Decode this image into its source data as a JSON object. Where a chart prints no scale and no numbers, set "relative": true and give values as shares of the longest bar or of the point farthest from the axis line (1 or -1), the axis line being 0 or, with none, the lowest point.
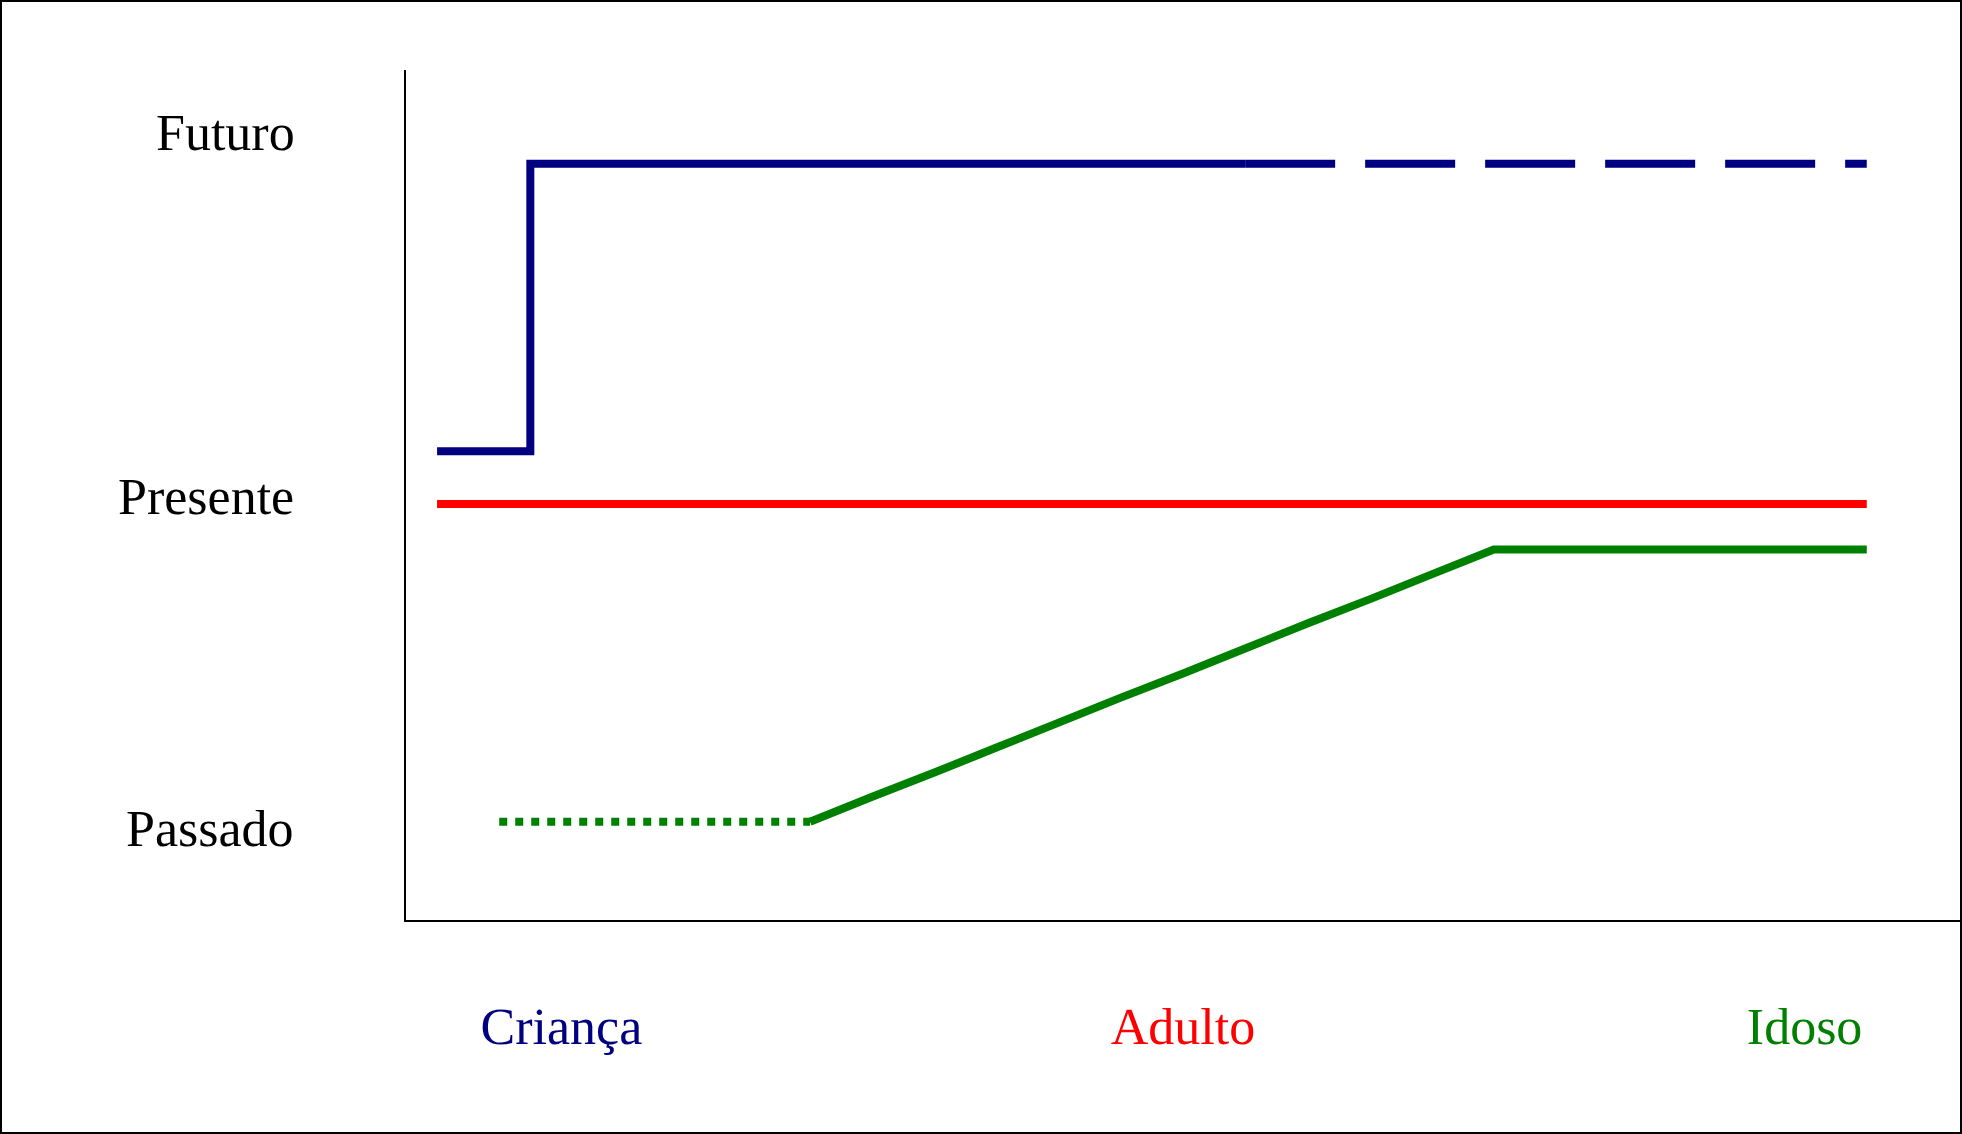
{
  "chart_data": {
    "type": "line",
    "relative": true,
    "categories": [
      null,
      null,
      "Criança",
      null,
      null,
      null,
      null,
      null,
      null,
      null,
      null,
      null,
      "Adulto",
      null,
      null,
      null,
      null,
      null,
      null,
      null,
      null,
      null,
      "Idoso",
      null,
      null
    ],
    "annotations": [
      "Futuro",
      "Presente",
      "Passado"
    ],
    "series": [
      {
        "type": "step",
        "color": "#000080",
        "values": [
          0.62,
          0.62,
          1,
          1,
          1,
          1,
          1,
          1,
          1,
          1,
          1,
          1,
          1,
          1,
          null,
          null,
          null,
          null,
          null,
          null,
          null,
          null,
          null,
          null,
          null
        ],
        "line_style": "solid"
      },
      {
        "color": "#ff0000",
        "values": [
          0.55,
          0.55,
          0.55,
          0.55,
          0.55,
          0.55,
          0.55,
          0.55,
          0.55,
          0.55,
          0.55,
          0.55,
          0.55,
          0.55,
          0.55,
          0.55,
          0.55,
          0.55,
          0.55,
          0.55,
          0.55,
          0.55,
          0.55,
          0.55,
          null
        ],
        "line_style": "solid"
      },
      {
        "color": "#008000",
        "values": [
          null,
          null,
          null,
          null,
          null,
          null,
          0.13,
          0.163,
          0.195,
          0.228,
          0.261,
          0.294,
          0.326,
          0.359,
          0.392,
          0.424,
          0.457,
          0.49,
          0.49,
          0.49,
          0.49,
          0.49,
          0.49,
          0.49,
          null
        ],
        "line_style": "solid"
      },
      {
        "color": "#000080",
        "values": [
          null,
          null,
          null,
          null,
          null,
          null,
          null,
          null,
          null,
          null,
          null,
          null,
          null,
          1,
          1,
          1,
          1,
          1,
          1,
          1,
          1,
          1,
          1,
          1,
          null
        ],
        "line_style": "dashed"
      },
      {
        "color": "#008000",
        "values": [
          null,
          0.13,
          0.13,
          0.13,
          0.13,
          0.13,
          0.13,
          null,
          null,
          null,
          null,
          null,
          null,
          null,
          null,
          null,
          null,
          null,
          null,
          null,
          null,
          null,
          null,
          null,
          null
        ],
        "line_style": "dotted"
      }
    ]
  }
}
